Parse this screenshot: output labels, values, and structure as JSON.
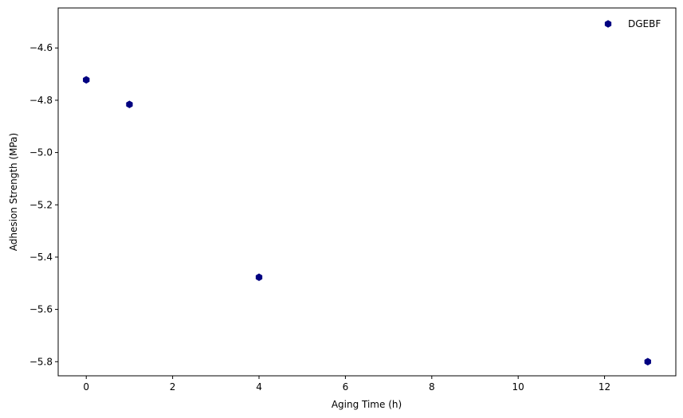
{
  "chart_data": {
    "type": "scatter",
    "title": "",
    "xlabel": "Aging Time (h)",
    "ylabel": "Adhesion Strength (MPa)",
    "xlim": [
      -0.65,
      13.65
    ],
    "ylim": [
      -5.854,
      -4.447
    ],
    "xticks": [
      0,
      2,
      4,
      6,
      8,
      10,
      12
    ],
    "yticks": [
      -5.8,
      -5.6,
      -5.4,
      -5.2,
      -5.0,
      -4.8,
      -4.6
    ],
    "grid": false,
    "legend_position": "top-right",
    "series": [
      {
        "name": "DGEBF",
        "color": "#000080",
        "marker": "hexagon",
        "x": [
          0,
          1,
          4,
          13
        ],
        "y": [
          -4.722,
          -4.816,
          -5.477,
          -5.8
        ]
      }
    ]
  }
}
